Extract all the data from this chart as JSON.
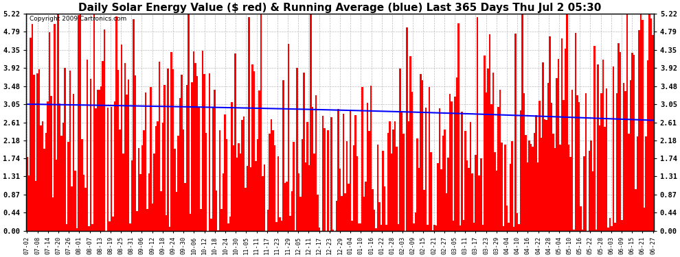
{
  "title": "Daily Solar Energy Value ($ red) & Running Average (blue) Last 365 Days Thu Jul 2 05:30",
  "copyright": "Copyright 2009 Cartronics.com",
  "yticks": [
    0.0,
    0.44,
    0.87,
    1.31,
    1.74,
    2.18,
    2.61,
    3.05,
    3.48,
    3.92,
    4.35,
    4.79,
    5.22
  ],
  "ylim": [
    0.0,
    5.22
  ],
  "bar_color": "#ff0000",
  "avg_color": "#0000ff",
  "bg_color": "#ffffff",
  "plot_bg": "#ffffff",
  "grid_color": "#aaaaaa",
  "title_fontsize": 11,
  "n_days": 365,
  "x_labels": [
    "07-02",
    "07-08",
    "07-14",
    "07-20",
    "07-26",
    "08-01",
    "08-07",
    "08-13",
    "08-19",
    "08-25",
    "08-31",
    "09-06",
    "09-12",
    "09-18",
    "09-24",
    "09-30",
    "10-06",
    "10-12",
    "10-18",
    "10-24",
    "10-30",
    "11-05",
    "11-11",
    "11-17",
    "11-23",
    "11-29",
    "12-05",
    "12-11",
    "12-17",
    "12-23",
    "12-29",
    "01-04",
    "01-10",
    "01-16",
    "01-22",
    "01-28",
    "02-03",
    "02-09",
    "02-15",
    "02-21",
    "02-27",
    "03-05",
    "03-11",
    "03-17",
    "03-23",
    "03-29",
    "04-04",
    "04-10",
    "04-16",
    "04-22",
    "04-28",
    "05-04",
    "05-10",
    "05-16",
    "05-22",
    "05-28",
    "06-03",
    "06-09",
    "06-15",
    "06-21",
    "06-27"
  ]
}
